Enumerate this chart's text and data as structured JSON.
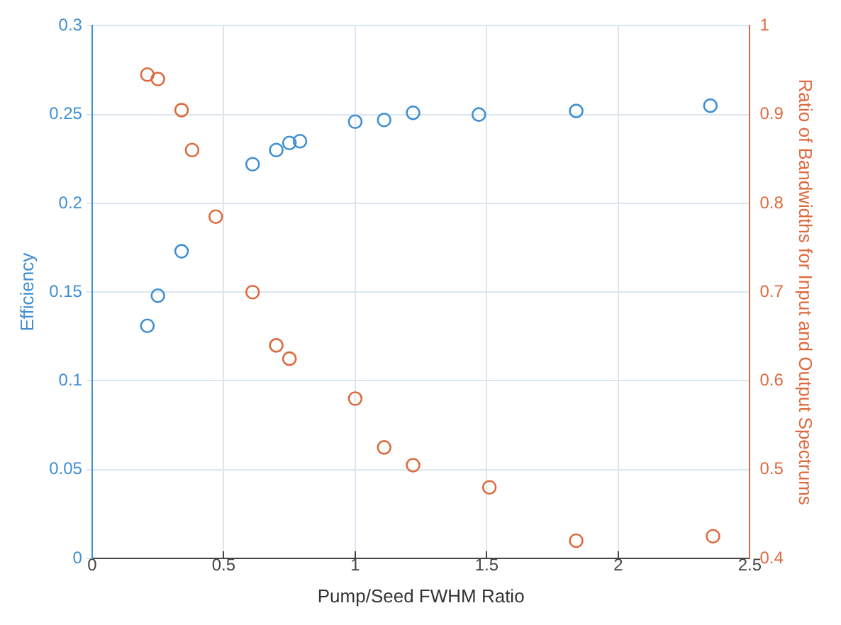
{
  "chart_data": {
    "type": "scatter",
    "xlabel": "Pump/Seed FWHM Ratio",
    "ylabel": "Efficiency",
    "y2label": "Ratio of Bandwidths for Input and Output Spectrums",
    "marker": "circle",
    "grid": true,
    "legend": false,
    "xlim": [
      0,
      2.5
    ],
    "xticks": [
      0,
      0.5,
      1,
      1.5,
      2,
      2.5
    ],
    "ylim": [
      0,
      0.3
    ],
    "yticks": [
      0,
      0.05,
      0.1,
      0.15,
      0.2,
      0.25,
      0.3
    ],
    "y2lim": [
      0.4,
      1
    ],
    "y2ticks": [
      0.4,
      0.5,
      0.6,
      0.7,
      0.8,
      0.9,
      1
    ],
    "series": [
      {
        "color": "#3f8fd2",
        "x": [
          0.21,
          0.25,
          0.34,
          0.61,
          0.7,
          0.75,
          0.79,
          1.0,
          1.11,
          1.22,
          1.47,
          1.84,
          2.35
        ],
        "values": [
          0.131,
          0.148,
          0.173,
          0.222,
          0.23,
          0.234,
          0.235,
          0.246,
          0.247,
          0.251,
          0.25,
          0.252,
          0.255
        ]
      },
      {
        "color": "#dd6a3e",
        "axis": "y2",
        "x": [
          0.21,
          0.25,
          0.34,
          0.38,
          0.47,
          0.61,
          0.7,
          0.75,
          1.0,
          1.11,
          1.22,
          1.51,
          1.84,
          2.36
        ],
        "values": [
          0.945,
          0.94,
          0.905,
          0.86,
          0.785,
          0.7,
          0.64,
          0.625,
          0.58,
          0.525,
          0.505,
          0.48,
          0.42,
          0.425
        ]
      }
    ]
  }
}
